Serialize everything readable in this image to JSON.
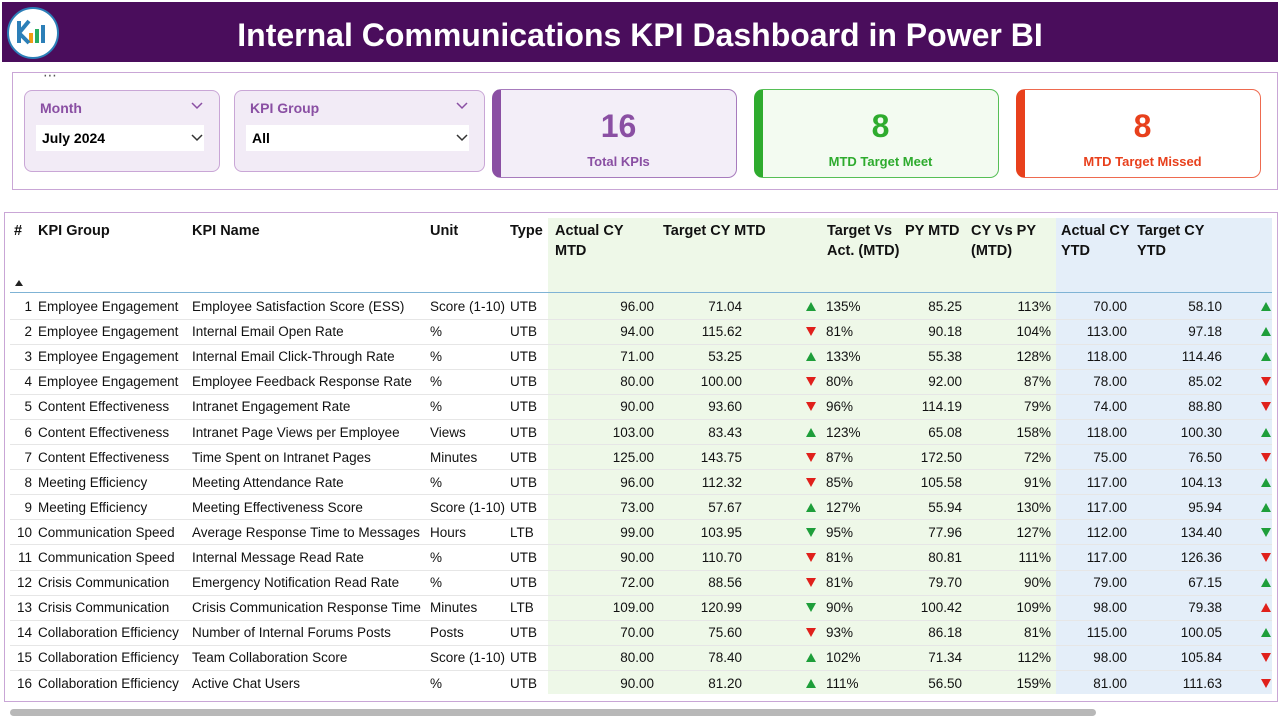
{
  "header": {
    "title": "Internal Communications KPI Dashboard in Power BI"
  },
  "filters": [
    {
      "label": "Month",
      "value": "July 2024"
    },
    {
      "label": "KPI Group",
      "value": "All"
    }
  ],
  "cards": [
    {
      "value": 16,
      "label": "Total KPIs"
    },
    {
      "value": 8,
      "label": "MTD Target Meet"
    },
    {
      "value": 8,
      "label": "MTD Target Missed"
    }
  ],
  "table": {
    "columns": [
      "#",
      "KPI Group",
      "KPI Name",
      "Unit",
      "Type",
      "Actual CY MTD",
      "Target CY MTD",
      "Target Vs Act. (MTD)",
      "PY MTD",
      "CY Vs PY (MTD)",
      "Actual CY YTD",
      "Target CY YTD"
    ],
    "rows": [
      [
        "1",
        "Employee Engagement",
        "Employee Satisfaction Score (ESS)",
        "Score (1-10)",
        "UTB",
        "96.00",
        "71.04",
        "135%",
        "85.25",
        "113%",
        "70.00",
        "58.10"
      ],
      [
        "2",
        "Employee Engagement",
        "Internal Email Open Rate",
        "%",
        "UTB",
        "94.00",
        "115.62",
        "81%",
        "90.18",
        "104%",
        "113.00",
        "97.18"
      ],
      [
        "3",
        "Employee Engagement",
        "Internal Email Click-Through Rate",
        "%",
        "UTB",
        "71.00",
        "53.25",
        "133%",
        "55.38",
        "128%",
        "118.00",
        "114.46"
      ],
      [
        "4",
        "Employee Engagement",
        "Employee Feedback Response Rate",
        "%",
        "UTB",
        "80.00",
        "100.00",
        "80%",
        "92.00",
        "87%",
        "78.00",
        "85.02"
      ],
      [
        "5",
        "Content Effectiveness",
        "Intranet Engagement Rate",
        "%",
        "UTB",
        "90.00",
        "93.60",
        "96%",
        "114.19",
        "79%",
        "74.00",
        "88.80"
      ],
      [
        "6",
        "Content Effectiveness",
        "Intranet Page Views per Employee",
        "Views",
        "UTB",
        "103.00",
        "83.43",
        "123%",
        "65.08",
        "158%",
        "118.00",
        "100.30"
      ],
      [
        "7",
        "Content Effectiveness",
        "Time Spent on Intranet Pages",
        "Minutes",
        "UTB",
        "125.00",
        "143.75",
        "87%",
        "172.50",
        "72%",
        "75.00",
        "76.50"
      ],
      [
        "8",
        "Meeting Efficiency",
        "Meeting Attendance Rate",
        "%",
        "UTB",
        "96.00",
        "112.32",
        "85%",
        "105.58",
        "91%",
        "117.00",
        "104.13"
      ],
      [
        "9",
        "Meeting Efficiency",
        "Meeting Effectiveness Score",
        "Score (1-10)",
        "UTB",
        "73.00",
        "57.67",
        "127%",
        "55.94",
        "130%",
        "117.00",
        "95.94"
      ],
      [
        "10",
        "Communication Speed",
        "Average Response Time to Messages",
        "Hours",
        "LTB",
        "99.00",
        "103.95",
        "95%",
        "77.96",
        "127%",
        "112.00",
        "134.40"
      ],
      [
        "11",
        "Communication Speed",
        "Internal Message Read Rate",
        "%",
        "UTB",
        "90.00",
        "110.70",
        "81%",
        "80.81",
        "111%",
        "117.00",
        "126.36"
      ],
      [
        "12",
        "Crisis Communication",
        "Emergency Notification Read Rate",
        "%",
        "UTB",
        "72.00",
        "88.56",
        "81%",
        "79.70",
        "90%",
        "79.00",
        "67.15"
      ],
      [
        "13",
        "Crisis Communication",
        "Crisis Communication Response Time",
        "Minutes",
        "LTB",
        "109.00",
        "120.99",
        "90%",
        "100.42",
        "109%",
        "98.00",
        "79.38"
      ],
      [
        "14",
        "Collaboration Efficiency",
        "Number of Internal Forums Posts",
        "Posts",
        "UTB",
        "70.00",
        "75.60",
        "93%",
        "86.18",
        "81%",
        "115.00",
        "100.05"
      ],
      [
        "15",
        "Collaboration Efficiency",
        "Team Collaboration Score",
        "Score (1-10)",
        "UTB",
        "80.00",
        "78.40",
        "102%",
        "71.34",
        "112%",
        "98.00",
        "105.84"
      ],
      [
        "16",
        "Collaboration Efficiency",
        "Active Chat Users",
        "%",
        "UTB",
        "90.00",
        "81.20",
        "111%",
        "56.50",
        "159%",
        "81.00",
        "111.63"
      ]
    ]
  }
}
